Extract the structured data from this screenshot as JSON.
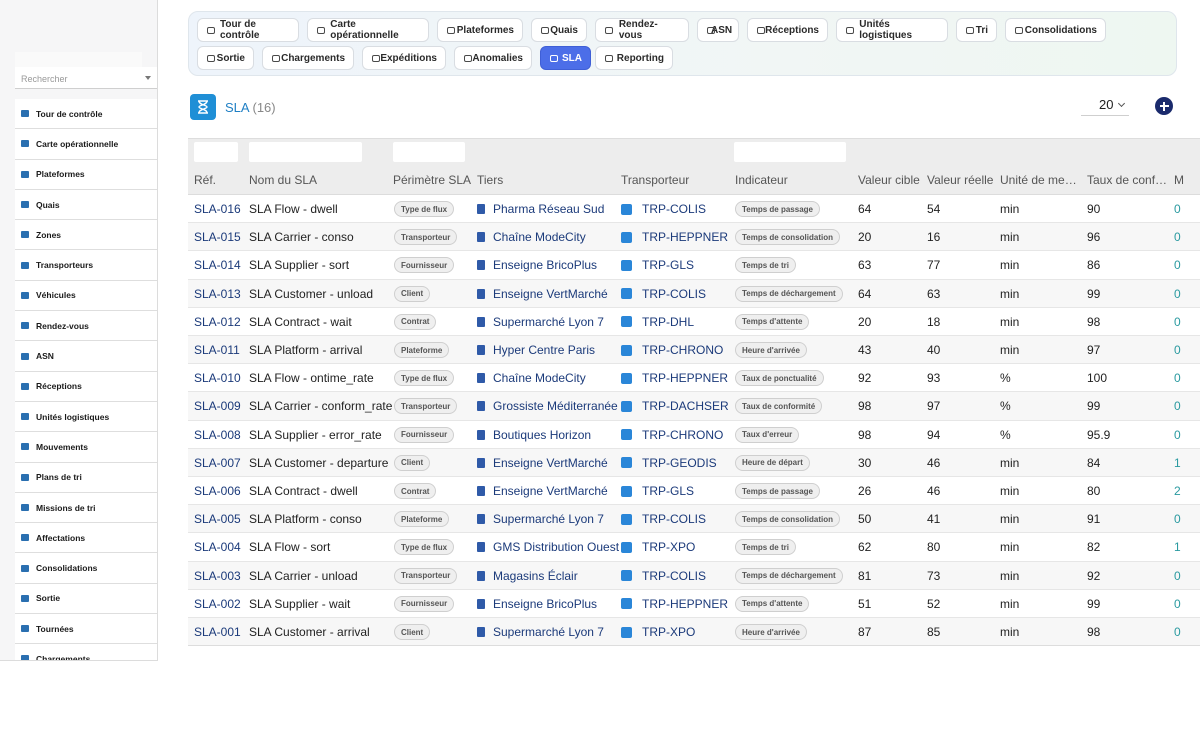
{
  "sidebar": {
    "search_placeholder": "Rechercher",
    "items": [
      {
        "label": "Tour de contrôle",
        "icon": "gauge-icon"
      },
      {
        "label": "Carte opérationnelle",
        "icon": "map-icon"
      },
      {
        "label": "Plateformes",
        "icon": "warehouse-icon"
      },
      {
        "label": "Quais",
        "icon": "dock-icon"
      },
      {
        "label": "Zones",
        "icon": "grid-icon"
      },
      {
        "label": "Transporteurs",
        "icon": "truck-icon"
      },
      {
        "label": "Véhicules",
        "icon": "vehicle-icon"
      },
      {
        "label": "Rendez-vous",
        "icon": "calendar-icon"
      },
      {
        "label": "ASN",
        "icon": "document-icon"
      },
      {
        "label": "Réceptions",
        "icon": "dolly-icon"
      },
      {
        "label": "Unités logistiques",
        "icon": "pallet-icon"
      },
      {
        "label": "Mouvements",
        "icon": "arrows-icon"
      },
      {
        "label": "Plans de tri",
        "icon": "sitemap-icon"
      },
      {
        "label": "Missions de tri",
        "icon": "list-icon"
      },
      {
        "label": "Affectations",
        "icon": "shuffle-icon"
      },
      {
        "label": "Consolidations",
        "icon": "layers-icon"
      },
      {
        "label": "Sortie",
        "icon": "exit-icon"
      },
      {
        "label": "Tournées",
        "icon": "route-icon"
      },
      {
        "label": "Chargements",
        "icon": "loading-icon"
      }
    ]
  },
  "tabs": {
    "row1": [
      {
        "label": "Tour de contrôle",
        "icon": "gauge-icon"
      },
      {
        "label": "Carte opérationnelle",
        "icon": "map-icon"
      },
      {
        "label": "Plateformes",
        "icon": "warehouse-icon"
      },
      {
        "label": "Quais",
        "icon": "dock-icon"
      },
      {
        "label": "Rendez-vous",
        "icon": "calendar-icon"
      },
      {
        "label": "ASN",
        "icon": "document-icon"
      },
      {
        "label": "Réceptions",
        "icon": "dolly-icon"
      },
      {
        "label": "Unités logistiques",
        "icon": "pallet-icon"
      },
      {
        "label": "Tri",
        "icon": "list-icon"
      },
      {
        "label": "Consolidations",
        "icon": "layers-icon"
      }
    ],
    "row2": [
      {
        "label": "Sortie",
        "icon": "exit-icon"
      },
      {
        "label": "Chargements",
        "icon": "loading-icon"
      },
      {
        "label": "Expéditions",
        "icon": "truck-icon"
      },
      {
        "label": "Anomalies",
        "icon": "warning-icon"
      },
      {
        "label": "SLA",
        "icon": "timer-icon",
        "active": true
      },
      {
        "label": "Reporting",
        "icon": "chart-pie-icon"
      }
    ]
  },
  "header": {
    "title": "SLA",
    "count": "(16)",
    "icon": "hourglass-icon",
    "page_size": "20"
  },
  "table": {
    "columns": [
      "Réf.",
      "Nom du SLA",
      "Périmètre SLA",
      "Tiers",
      "Transporteur",
      "Indicateur",
      "Valeur cible",
      "Valeur réelle",
      "Unité de me…",
      "Taux de conf…",
      "M"
    ],
    "rows": [
      {
        "ref": "SLA-016",
        "name": "SLA Flow - dwell",
        "scope": "Type de flux",
        "tiers": "Pharma Réseau Sud",
        "carrier": "TRP-COLIS",
        "indicator": "Temps de passage",
        "target": "64",
        "actual": "54",
        "unit": "min",
        "rate": "90",
        "m": "0"
      },
      {
        "ref": "SLA-015",
        "name": "SLA Carrier - conso",
        "scope": "Transporteur",
        "tiers": "Chaîne ModeCity",
        "carrier": "TRP-HEPPNER",
        "indicator": "Temps de consolidation",
        "target": "20",
        "actual": "16",
        "unit": "min",
        "rate": "96",
        "m": "0"
      },
      {
        "ref": "SLA-014",
        "name": "SLA Supplier - sort",
        "scope": "Fournisseur",
        "tiers": "Enseigne BricoPlus",
        "carrier": "TRP-GLS",
        "indicator": "Temps de tri",
        "target": "63",
        "actual": "77",
        "unit": "min",
        "rate": "86",
        "m": "0"
      },
      {
        "ref": "SLA-013",
        "name": "SLA Customer - unload",
        "scope": "Client",
        "tiers": "Enseigne VertMarché",
        "carrier": "TRP-COLIS",
        "indicator": "Temps de déchargement",
        "target": "64",
        "actual": "63",
        "unit": "min",
        "rate": "99",
        "m": "0"
      },
      {
        "ref": "SLA-012",
        "name": "SLA Contract - wait",
        "scope": "Contrat",
        "tiers": "Supermarché Lyon 7",
        "carrier": "TRP-DHL",
        "indicator": "Temps d'attente",
        "target": "20",
        "actual": "18",
        "unit": "min",
        "rate": "98",
        "m": "0"
      },
      {
        "ref": "SLA-011",
        "name": "SLA Platform - arrival",
        "scope": "Plateforme",
        "tiers": "Hyper Centre Paris",
        "carrier": "TRP-CHRONO",
        "indicator": "Heure d'arrivée",
        "target": "43",
        "actual": "40",
        "unit": "min",
        "rate": "97",
        "m": "0"
      },
      {
        "ref": "SLA-010",
        "name": "SLA Flow - ontime_rate",
        "scope": "Type de flux",
        "tiers": "Chaîne ModeCity",
        "carrier": "TRP-HEPPNER",
        "indicator": "Taux de ponctualité",
        "target": "92",
        "actual": "93",
        "unit": "%",
        "rate": "100",
        "m": "0"
      },
      {
        "ref": "SLA-009",
        "name": "SLA Carrier - conform_rate",
        "scope": "Transporteur",
        "tiers": "Grossiste Méditerranée",
        "carrier": "TRP-DACHSER",
        "indicator": "Taux de conformité",
        "target": "98",
        "actual": "97",
        "unit": "%",
        "rate": "99",
        "m": "0"
      },
      {
        "ref": "SLA-008",
        "name": "SLA Supplier - error_rate",
        "scope": "Fournisseur",
        "tiers": "Boutiques Horizon",
        "carrier": "TRP-CHRONO",
        "indicator": "Taux d'erreur",
        "target": "98",
        "actual": "94",
        "unit": "%",
        "rate": "95.9",
        "m": "0"
      },
      {
        "ref": "SLA-007",
        "name": "SLA Customer - departure",
        "scope": "Client",
        "tiers": "Enseigne VertMarché",
        "carrier": "TRP-GEODIS",
        "indicator": "Heure de départ",
        "target": "30",
        "actual": "46",
        "unit": "min",
        "rate": "84",
        "m": "1"
      },
      {
        "ref": "SLA-006",
        "name": "SLA Contract - dwell",
        "scope": "Contrat",
        "tiers": "Enseigne VertMarché",
        "carrier": "TRP-GLS",
        "indicator": "Temps de passage",
        "target": "26",
        "actual": "46",
        "unit": "min",
        "rate": "80",
        "m": "2"
      },
      {
        "ref": "SLA-005",
        "name": "SLA Platform - conso",
        "scope": "Plateforme",
        "tiers": "Supermarché Lyon 7",
        "carrier": "TRP-COLIS",
        "indicator": "Temps de consolidation",
        "target": "50",
        "actual": "41",
        "unit": "min",
        "rate": "91",
        "m": "0"
      },
      {
        "ref": "SLA-004",
        "name": "SLA Flow - sort",
        "scope": "Type de flux",
        "tiers": "GMS Distribution Ouest",
        "carrier": "TRP-XPO",
        "indicator": "Temps de tri",
        "target": "62",
        "actual": "80",
        "unit": "min",
        "rate": "82",
        "m": "1"
      },
      {
        "ref": "SLA-003",
        "name": "SLA Carrier - unload",
        "scope": "Transporteur",
        "tiers": "Magasins Éclair",
        "carrier": "TRP-COLIS",
        "indicator": "Temps de déchargement",
        "target": "81",
        "actual": "73",
        "unit": "min",
        "rate": "92",
        "m": "0"
      },
      {
        "ref": "SLA-002",
        "name": "SLA Supplier - wait",
        "scope": "Fournisseur",
        "tiers": "Enseigne BricoPlus",
        "carrier": "TRP-HEPPNER",
        "indicator": "Temps d'attente",
        "target": "51",
        "actual": "52",
        "unit": "min",
        "rate": "99",
        "m": "0"
      },
      {
        "ref": "SLA-001",
        "name": "SLA Customer - arrival",
        "scope": "Client",
        "tiers": "Supermarché Lyon 7",
        "carrier": "TRP-XPO",
        "indicator": "Heure d'arrivée",
        "target": "87",
        "actual": "85",
        "unit": "min",
        "rate": "98",
        "m": "0"
      }
    ]
  }
}
